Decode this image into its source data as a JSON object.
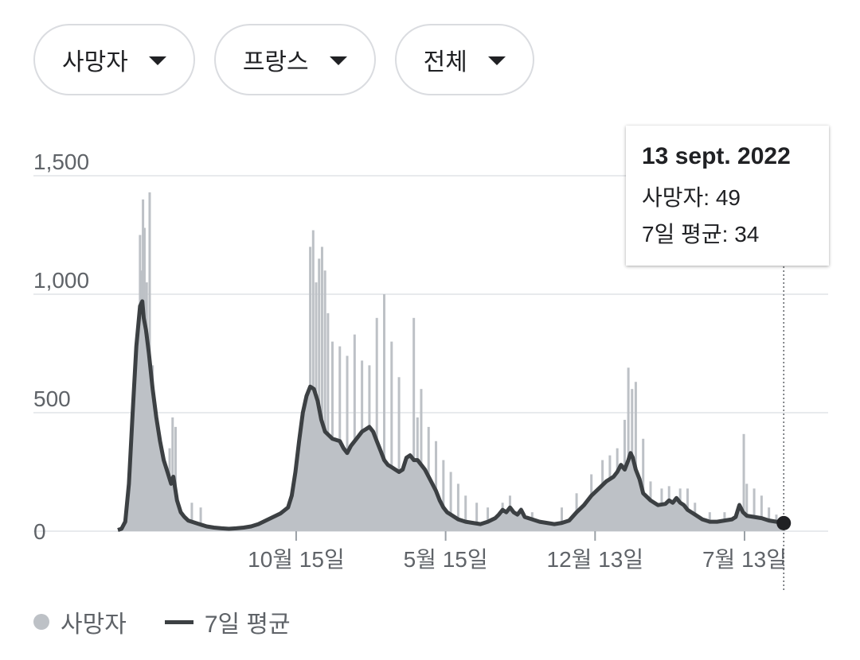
{
  "filters": [
    {
      "label": "사망자"
    },
    {
      "label": "프랑스"
    },
    {
      "label": "전체"
    }
  ],
  "tooltip": {
    "date": "13 sept. 2022",
    "deaths_label": "사망자",
    "deaths_value": "49",
    "avg_label": "7일 평균",
    "avg_value": "34"
  },
  "legend": {
    "deaths": "사망자",
    "avg": "7일 평균"
  },
  "colors": {
    "bars": "#bdc1c6",
    "area": "#bdc1c6",
    "line": "#3c4043",
    "grid": "#e8eaed",
    "axis_text": "#5f6368"
  },
  "chart_data": {
    "type": "bar",
    "x_range": [
      0,
      960
    ],
    "y_ticks": [
      0,
      500,
      1000,
      1500
    ],
    "y_tick_labels": [
      "0",
      "500",
      "1,000",
      "1,500"
    ],
    "ylim": [
      0,
      1600
    ],
    "x_ticks": [
      {
        "x": 241,
        "label": "10월 15일"
      },
      {
        "x": 443,
        "label": "5월 15일"
      },
      {
        "x": 645,
        "label": "12월 13일"
      },
      {
        "x": 847,
        "label": "7월 13일"
      }
    ],
    "series": [
      {
        "name": "7일 평균",
        "style": "line+area",
        "points": [
          [
            0,
            5
          ],
          [
            5,
            10
          ],
          [
            10,
            40
          ],
          [
            15,
            200
          ],
          [
            20,
            500
          ],
          [
            25,
            780
          ],
          [
            30,
            950
          ],
          [
            33,
            970
          ],
          [
            35,
            900
          ],
          [
            38,
            850
          ],
          [
            42,
            750
          ],
          [
            47,
            600
          ],
          [
            52,
            480
          ],
          [
            57,
            380
          ],
          [
            62,
            300
          ],
          [
            67,
            250
          ],
          [
            72,
            200
          ],
          [
            75,
            230
          ],
          [
            80,
            130
          ],
          [
            85,
            80
          ],
          [
            90,
            60
          ],
          [
            95,
            45
          ],
          [
            100,
            40
          ],
          [
            110,
            30
          ],
          [
            120,
            20
          ],
          [
            130,
            15
          ],
          [
            140,
            12
          ],
          [
            150,
            10
          ],
          [
            160,
            12
          ],
          [
            170,
            15
          ],
          [
            180,
            20
          ],
          [
            190,
            30
          ],
          [
            200,
            45
          ],
          [
            210,
            60
          ],
          [
            220,
            75
          ],
          [
            230,
            100
          ],
          [
            235,
            150
          ],
          [
            240,
            250
          ],
          [
            245,
            380
          ],
          [
            250,
            500
          ],
          [
            255,
            570
          ],
          [
            260,
            610
          ],
          [
            265,
            600
          ],
          [
            270,
            550
          ],
          [
            275,
            470
          ],
          [
            280,
            420
          ],
          [
            290,
            390
          ],
          [
            300,
            380
          ],
          [
            305,
            350
          ],
          [
            310,
            330
          ],
          [
            315,
            360
          ],
          [
            320,
            380
          ],
          [
            325,
            400
          ],
          [
            330,
            420
          ],
          [
            335,
            430
          ],
          [
            340,
            440
          ],
          [
            345,
            420
          ],
          [
            350,
            380
          ],
          [
            355,
            340
          ],
          [
            360,
            300
          ],
          [
            365,
            280
          ],
          [
            370,
            270
          ],
          [
            375,
            260
          ],
          [
            380,
            250
          ],
          [
            385,
            260
          ],
          [
            390,
            310
          ],
          [
            395,
            320
          ],
          [
            400,
            300
          ],
          [
            405,
            300
          ],
          [
            410,
            280
          ],
          [
            415,
            260
          ],
          [
            420,
            230
          ],
          [
            425,
            200
          ],
          [
            430,
            170
          ],
          [
            435,
            130
          ],
          [
            440,
            100
          ],
          [
            445,
            80
          ],
          [
            450,
            70
          ],
          [
            460,
            50
          ],
          [
            470,
            40
          ],
          [
            480,
            35
          ],
          [
            490,
            30
          ],
          [
            500,
            40
          ],
          [
            510,
            55
          ],
          [
            515,
            70
          ],
          [
            520,
            90
          ],
          [
            525,
            80
          ],
          [
            530,
            100
          ],
          [
            535,
            80
          ],
          [
            540,
            70
          ],
          [
            545,
            90
          ],
          [
            550,
            60
          ],
          [
            560,
            50
          ],
          [
            570,
            40
          ],
          [
            580,
            35
          ],
          [
            590,
            30
          ],
          [
            600,
            35
          ],
          [
            610,
            45
          ],
          [
            620,
            80
          ],
          [
            630,
            110
          ],
          [
            640,
            150
          ],
          [
            650,
            180
          ],
          [
            660,
            210
          ],
          [
            670,
            230
          ],
          [
            675,
            250
          ],
          [
            680,
            280
          ],
          [
            685,
            260
          ],
          [
            690,
            300
          ],
          [
            693,
            330
          ],
          [
            696,
            310
          ],
          [
            700,
            260
          ],
          [
            705,
            220
          ],
          [
            710,
            160
          ],
          [
            720,
            130
          ],
          [
            730,
            110
          ],
          [
            740,
            115
          ],
          [
            745,
            130
          ],
          [
            750,
            120
          ],
          [
            755,
            140
          ],
          [
            760,
            120
          ],
          [
            765,
            110
          ],
          [
            770,
            90
          ],
          [
            780,
            70
          ],
          [
            790,
            50
          ],
          [
            800,
            40
          ],
          [
            810,
            40
          ],
          [
            820,
            45
          ],
          [
            830,
            50
          ],
          [
            835,
            60
          ],
          [
            840,
            110
          ],
          [
            845,
            80
          ],
          [
            850,
            65
          ],
          [
            860,
            60
          ],
          [
            870,
            55
          ],
          [
            880,
            45
          ],
          [
            890,
            40
          ],
          [
            900,
            34
          ]
        ]
      },
      {
        "name": "사망자",
        "style": "bars",
        "bars": [
          [
            30,
            1250
          ],
          [
            32,
            1100
          ],
          [
            34,
            1400
          ],
          [
            36,
            1280
          ],
          [
            39,
            1050
          ],
          [
            43,
            1430
          ],
          [
            47,
            700
          ],
          [
            70,
            350
          ],
          [
            74,
            480
          ],
          [
            78,
            440
          ],
          [
            100,
            120
          ],
          [
            112,
            100
          ],
          [
            260,
            1200
          ],
          [
            264,
            1270
          ],
          [
            268,
            1050
          ],
          [
            272,
            1150
          ],
          [
            276,
            1200
          ],
          [
            280,
            1100
          ],
          [
            284,
            920
          ],
          [
            290,
            800
          ],
          [
            300,
            780
          ],
          [
            310,
            740
          ],
          [
            320,
            830
          ],
          [
            330,
            720
          ],
          [
            340,
            700
          ],
          [
            350,
            900
          ],
          [
            360,
            1000
          ],
          [
            370,
            800
          ],
          [
            380,
            650
          ],
          [
            400,
            900
          ],
          [
            405,
            480
          ],
          [
            410,
            600
          ],
          [
            420,
            440
          ],
          [
            430,
            380
          ],
          [
            440,
            300
          ],
          [
            450,
            250
          ],
          [
            460,
            200
          ],
          [
            470,
            150
          ],
          [
            485,
            120
          ],
          [
            500,
            100
          ],
          [
            520,
            120
          ],
          [
            530,
            150
          ],
          [
            545,
            100
          ],
          [
            560,
            80
          ],
          [
            600,
            100
          ],
          [
            620,
            160
          ],
          [
            640,
            240
          ],
          [
            655,
            300
          ],
          [
            665,
            320
          ],
          [
            675,
            350
          ],
          [
            685,
            470
          ],
          [
            690,
            690
          ],
          [
            695,
            600
          ],
          [
            700,
            630
          ],
          [
            710,
            390
          ],
          [
            720,
            210
          ],
          [
            735,
            180
          ],
          [
            745,
            190
          ],
          [
            760,
            180
          ],
          [
            770,
            180
          ],
          [
            780,
            120
          ],
          [
            800,
            80
          ],
          [
            820,
            80
          ],
          [
            840,
            120
          ],
          [
            846,
            410
          ],
          [
            850,
            200
          ],
          [
            860,
            180
          ],
          [
            870,
            150
          ],
          [
            880,
            100
          ],
          [
            890,
            70
          ],
          [
            900,
            49
          ]
        ]
      }
    ],
    "highlight": {
      "x": 900,
      "y": 34
    }
  }
}
